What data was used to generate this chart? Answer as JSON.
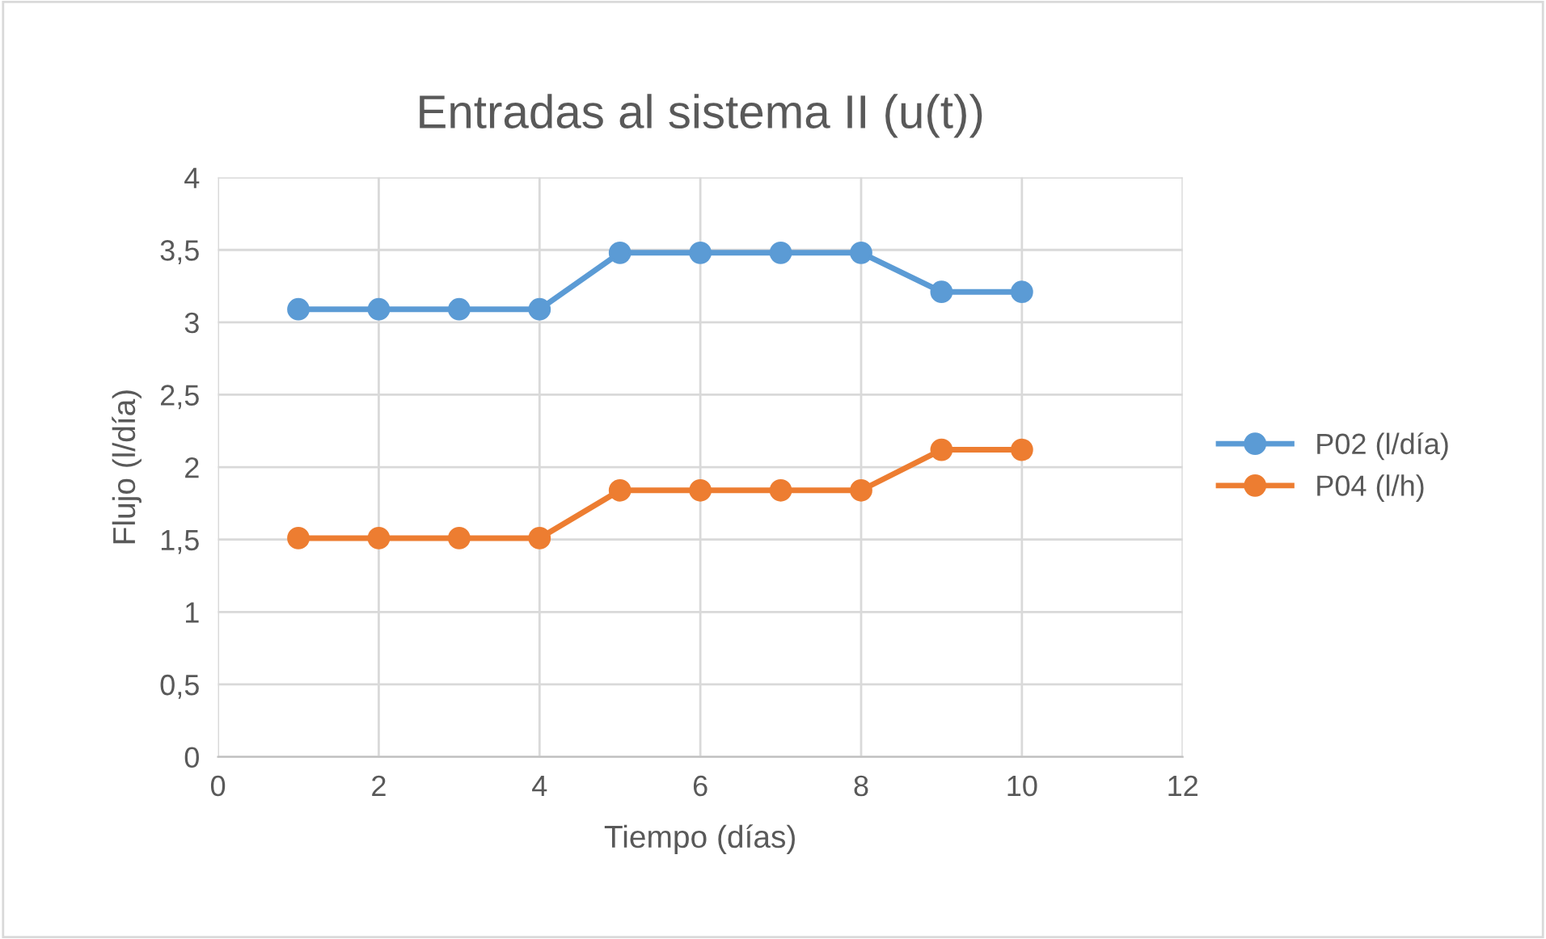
{
  "chart_data": {
    "type": "line",
    "title": "Entradas al sistema II (u(t))",
    "xlabel": "Tiempo (días)",
    "ylabel": "Flujo (l/día)",
    "x": [
      1,
      2,
      3,
      4,
      5,
      6,
      7,
      8,
      9,
      10
    ],
    "series": [
      {
        "name": "P02 (l/día)",
        "color": "#5b9bd5",
        "values": [
          3.09,
          3.09,
          3.09,
          3.09,
          3.48,
          3.48,
          3.48,
          3.48,
          3.21,
          3.21
        ]
      },
      {
        "name": "P04 (l/h)",
        "color": "#ed7d31",
        "values": [
          1.51,
          1.51,
          1.51,
          1.51,
          1.84,
          1.84,
          1.84,
          1.84,
          2.12,
          2.12
        ]
      }
    ],
    "xlim": [
      0,
      12
    ],
    "xticks": [
      0,
      2,
      4,
      6,
      8,
      10,
      12
    ],
    "ylim": [
      0,
      4
    ],
    "yticks": [
      0,
      {
        "value": 0.5,
        "label": "0,5"
      },
      1,
      {
        "value": 1.5,
        "label": "1,5"
      },
      2,
      {
        "value": 2.5,
        "label": "2,5"
      },
      3,
      {
        "value": 3.5,
        "label": "3,5"
      },
      4
    ],
    "grid": true,
    "legend": "right",
    "marker": "circle",
    "line_style": "solid"
  }
}
